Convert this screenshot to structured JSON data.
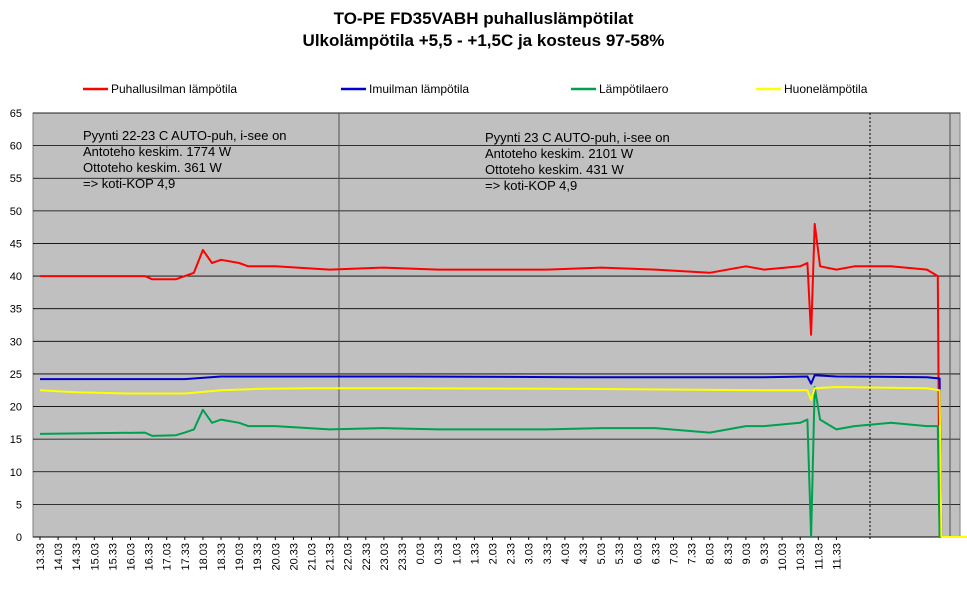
{
  "chart_data": {
    "type": "line",
    "title": [
      "TO-PE FD35VABH puhalluslämpötilat",
      "Ulkolämpötila +5,5 - +1,5C ja kosteus 97-58%"
    ],
    "ylim": [
      0,
      65
    ],
    "yticks": [
      0,
      5,
      10,
      15,
      20,
      25,
      30,
      35,
      40,
      45,
      50,
      55,
      60,
      65
    ],
    "x_tick_labels": [
      "13.33",
      "14.03",
      "14.33",
      "15.03",
      "15.33",
      "16.03",
      "16.33",
      "17.03",
      "17.33",
      "18.03",
      "18.33",
      "19.03",
      "19.33",
      "20.03",
      "20.33",
      "21.03",
      "21.33",
      "22.03",
      "22.33",
      "23.03",
      "23.33",
      "0.03",
      "0.33",
      "1.03",
      "1.33",
      "2.03",
      "2.33",
      "3.03",
      "3.33",
      "4.03",
      "4.33",
      "5.03",
      "5.33",
      "6.03",
      "6.33",
      "7.03",
      "7.33",
      "8.03",
      "8.33",
      "9.03",
      "9.33",
      "10.03",
      "10.33",
      "11.03",
      "11.33"
    ],
    "grid": true,
    "legend_position": "top",
    "plot_background": "#c0c0c0",
    "series": [
      {
        "name": "Puhallusilman lämpötila",
        "color": "#ff0000",
        "points": [
          [
            0,
            40
          ],
          [
            5.8,
            40
          ],
          [
            6.2,
            39.5
          ],
          [
            7.5,
            39.5
          ],
          [
            8,
            40
          ],
          [
            8.5,
            40.5
          ],
          [
            9,
            44
          ],
          [
            9.5,
            42
          ],
          [
            10,
            42.5
          ],
          [
            11,
            42
          ],
          [
            11.5,
            41.5
          ],
          [
            13,
            41.5
          ],
          [
            16,
            41
          ],
          [
            19,
            41.3
          ],
          [
            22,
            41
          ],
          [
            25,
            41
          ],
          [
            28,
            41
          ],
          [
            31,
            41.3
          ],
          [
            34,
            41
          ],
          [
            37,
            40.5
          ],
          [
            39,
            41.5
          ],
          [
            40,
            41
          ],
          [
            42,
            41.5
          ],
          [
            42.4,
            42
          ],
          [
            42.6,
            31
          ],
          [
            42.8,
            48
          ],
          [
            43.1,
            41.5
          ],
          [
            44,
            41
          ],
          [
            45,
            41.5
          ],
          [
            47,
            41.5
          ],
          [
            49,
            41
          ],
          [
            49.6,
            40
          ],
          [
            49.7,
            0
          ],
          [
            55,
            0
          ]
        ]
      },
      {
        "name": "Imuilman lämpötila",
        "color": "#0000cc",
        "points": [
          [
            0,
            24.2
          ],
          [
            8,
            24.2
          ],
          [
            10,
            24.6
          ],
          [
            20,
            24.6
          ],
          [
            30,
            24.5
          ],
          [
            40,
            24.5
          ],
          [
            42.4,
            24.6
          ],
          [
            42.6,
            23.5
          ],
          [
            42.8,
            24.8
          ],
          [
            44,
            24.6
          ],
          [
            49,
            24.5
          ],
          [
            49.7,
            24.3
          ],
          [
            49.8,
            0
          ],
          [
            55,
            0
          ]
        ]
      },
      {
        "name": "Lämpötilaero",
        "color": "#00a050",
        "points": [
          [
            0,
            15.8
          ],
          [
            5.8,
            16
          ],
          [
            6.2,
            15.5
          ],
          [
            7.5,
            15.6
          ],
          [
            8,
            16
          ],
          [
            8.5,
            16.5
          ],
          [
            9,
            19.5
          ],
          [
            9.5,
            17.5
          ],
          [
            10,
            18
          ],
          [
            11,
            17.5
          ],
          [
            11.5,
            17
          ],
          [
            13,
            17
          ],
          [
            16,
            16.5
          ],
          [
            19,
            16.7
          ],
          [
            22,
            16.5
          ],
          [
            25,
            16.5
          ],
          [
            28,
            16.5
          ],
          [
            31,
            16.7
          ],
          [
            34,
            16.7
          ],
          [
            37,
            16
          ],
          [
            39,
            17
          ],
          [
            40,
            17
          ],
          [
            42,
            17.5
          ],
          [
            42.4,
            18
          ],
          [
            42.6,
            0
          ],
          [
            42.8,
            23
          ],
          [
            43.1,
            18
          ],
          [
            44,
            16.5
          ],
          [
            45,
            17
          ],
          [
            47,
            17.5
          ],
          [
            49,
            17
          ],
          [
            49.6,
            17
          ],
          [
            49.7,
            0
          ],
          [
            55,
            0
          ]
        ]
      },
      {
        "name": "Huonelämpötila",
        "color": "#ffff00",
        "points": [
          [
            0,
            22.5
          ],
          [
            2,
            22.2
          ],
          [
            5,
            22
          ],
          [
            8,
            22
          ],
          [
            10,
            22.5
          ],
          [
            12,
            22.7
          ],
          [
            15,
            22.8
          ],
          [
            20,
            22.8
          ],
          [
            30,
            22.7
          ],
          [
            40,
            22.5
          ],
          [
            42.4,
            22.5
          ],
          [
            42.6,
            21
          ],
          [
            42.8,
            22.8
          ],
          [
            44,
            23
          ],
          [
            49,
            22.8
          ],
          [
            49.7,
            22.5
          ],
          [
            49.8,
            0
          ],
          [
            55,
            0
          ]
        ]
      }
    ],
    "annotations": [
      [
        "Pyynti 22-23 C AUTO-puh, i-see on",
        "Antoteho  keskim. 1774 W",
        "Ottoteho keskim. 361  W",
        "=> koti-KOP 4,9"
      ],
      [
        "Pyynti 23 C AUTO-puh, i-see on",
        "Antoteho  keskim. 2101 W",
        "Ottoteho keskim. 431  W",
        "=> koti-KOP 4,9"
      ]
    ]
  }
}
